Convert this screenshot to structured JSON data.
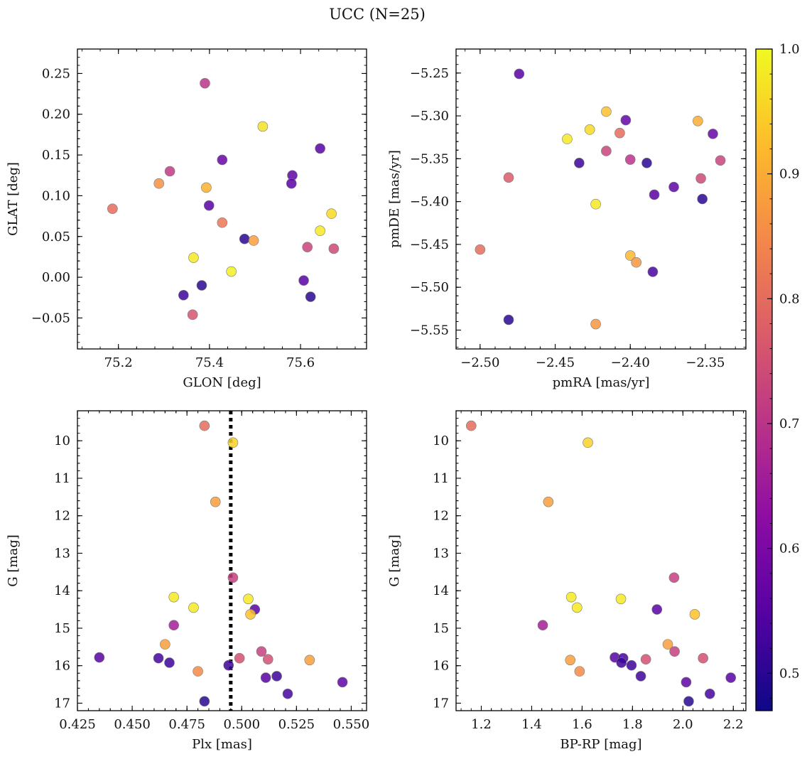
{
  "suptitle": "UCC (N=25)",
  "colorbar": {
    "min": 0.47,
    "max": 1.0,
    "ticks": [
      "0.5",
      "0.6",
      "0.7",
      "0.8",
      "0.9",
      "1.0"
    ],
    "tick_values": [
      0.5,
      0.6,
      0.7,
      0.8,
      0.9,
      1.0
    ],
    "colormap": "plasma"
  },
  "chart_data": [
    {
      "type": "scatter",
      "xlabel": "GLON [deg]",
      "ylabel": "GLAT [deg]",
      "xlim": [
        75.11,
        75.745
      ],
      "ylim": [
        -0.088,
        0.28
      ],
      "y_inverted": false,
      "xticks": [
        75.2,
        75.4,
        75.6
      ],
      "xticklabels": [
        "75.2",
        "75.4",
        "75.6"
      ],
      "yticks": [
        -0.05,
        0.0,
        0.05,
        0.1,
        0.15,
        0.2,
        0.25
      ],
      "yticklabels": [
        "−0.05",
        "0.00",
        "0.05",
        "0.10",
        "0.15",
        "0.20",
        "0.25"
      ],
      "points": [
        {
          "x": 75.39,
          "y": 0.238,
          "c": 0.7
        },
        {
          "x": 75.517,
          "y": 0.185,
          "c": 0.97
        },
        {
          "x": 75.643,
          "y": 0.158,
          "c": 0.55
        },
        {
          "x": 75.428,
          "y": 0.144,
          "c": 0.57
        },
        {
          "x": 75.313,
          "y": 0.13,
          "c": 0.71
        },
        {
          "x": 75.582,
          "y": 0.125,
          "c": 0.56
        },
        {
          "x": 75.289,
          "y": 0.115,
          "c": 0.86
        },
        {
          "x": 75.58,
          "y": 0.115,
          "c": 0.55
        },
        {
          "x": 75.393,
          "y": 0.11,
          "c": 0.91
        },
        {
          "x": 75.399,
          "y": 0.088,
          "c": 0.55
        },
        {
          "x": 75.187,
          "y": 0.084,
          "c": 0.8
        },
        {
          "x": 75.668,
          "y": 0.078,
          "c": 0.96
        },
        {
          "x": 75.428,
          "y": 0.067,
          "c": 0.82
        },
        {
          "x": 75.643,
          "y": 0.057,
          "c": 0.98
        },
        {
          "x": 75.477,
          "y": 0.047,
          "c": 0.5
        },
        {
          "x": 75.497,
          "y": 0.045,
          "c": 0.88
        },
        {
          "x": 75.615,
          "y": 0.037,
          "c": 0.73
        },
        {
          "x": 75.673,
          "y": 0.035,
          "c": 0.74
        },
        {
          "x": 75.365,
          "y": 0.024,
          "c": 0.98
        },
        {
          "x": 75.448,
          "y": 0.007,
          "c": 0.99
        },
        {
          "x": 75.607,
          "y": -0.004,
          "c": 0.55
        },
        {
          "x": 75.383,
          "y": -0.01,
          "c": 0.5
        },
        {
          "x": 75.343,
          "y": -0.022,
          "c": 0.52
        },
        {
          "x": 75.622,
          "y": -0.024,
          "c": 0.5
        },
        {
          "x": 75.363,
          "y": -0.046,
          "c": 0.76
        }
      ]
    },
    {
      "type": "scatter",
      "xlabel": "pmRA [mas/yr]",
      "ylabel": "pmDE [mas/yr]",
      "xlim": [
        -2.516,
        -2.323
      ],
      "ylim": [
        -5.572,
        -5.222
      ],
      "y_inverted": false,
      "xticks": [
        -2.5,
        -2.45,
        -2.4,
        -2.35
      ],
      "xticklabels": [
        "−2.50",
        "−2.45",
        "−2.40",
        "−2.35"
      ],
      "yticks": [
        -5.55,
        -5.5,
        -5.45,
        -5.4,
        -5.35,
        -5.3,
        -5.25
      ],
      "yticklabels": [
        "−5.55",
        "−5.50",
        "−5.45",
        "−5.40",
        "−5.35",
        "−5.30",
        "−5.25"
      ],
      "points": [
        {
          "x": -2.474,
          "y": -5.251,
          "c": 0.55
        },
        {
          "x": -2.416,
          "y": -5.295,
          "c": 0.93
        },
        {
          "x": -2.403,
          "y": -5.305,
          "c": 0.57
        },
        {
          "x": -2.355,
          "y": -5.306,
          "c": 0.9
        },
        {
          "x": -2.427,
          "y": -5.316,
          "c": 0.96
        },
        {
          "x": -2.407,
          "y": -5.32,
          "c": 0.8
        },
        {
          "x": -2.345,
          "y": -5.321,
          "c": 0.57
        },
        {
          "x": -2.442,
          "y": -5.327,
          "c": 0.98
        },
        {
          "x": -2.416,
          "y": -5.341,
          "c": 0.73
        },
        {
          "x": -2.4,
          "y": -5.351,
          "c": 0.7
        },
        {
          "x": -2.34,
          "y": -5.352,
          "c": 0.73
        },
        {
          "x": -2.434,
          "y": -5.355,
          "c": 0.52
        },
        {
          "x": -2.389,
          "y": -5.355,
          "c": 0.5
        },
        {
          "x": -2.481,
          "y": -5.372,
          "c": 0.77
        },
        {
          "x": -2.353,
          "y": -5.373,
          "c": 0.74
        },
        {
          "x": -2.371,
          "y": -5.383,
          "c": 0.56
        },
        {
          "x": -2.384,
          "y": -5.392,
          "c": 0.55
        },
        {
          "x": -2.352,
          "y": -5.397,
          "c": 0.5
        },
        {
          "x": -2.423,
          "y": -5.403,
          "c": 0.98
        },
        {
          "x": -2.5,
          "y": -5.456,
          "c": 0.8
        },
        {
          "x": -2.4,
          "y": -5.463,
          "c": 0.92
        },
        {
          "x": -2.396,
          "y": -5.471,
          "c": 0.87
        },
        {
          "x": -2.385,
          "y": -5.482,
          "c": 0.53
        },
        {
          "x": -2.481,
          "y": -5.538,
          "c": 0.5
        },
        {
          "x": -2.423,
          "y": -5.543,
          "c": 0.87
        }
      ]
    },
    {
      "type": "scatter",
      "xlabel": "Plx [mas]",
      "ylabel": "G [mag]",
      "xlim": [
        0.425,
        0.557
      ],
      "ylim": [
        9.2,
        17.2
      ],
      "y_inverted": true,
      "vline": {
        "x": 0.495,
        "style": "dotted"
      },
      "xticks": [
        0.425,
        0.45,
        0.475,
        0.5,
        0.525,
        0.55
      ],
      "xticklabels": [
        "0.425",
        "0.450",
        "0.475",
        "0.500",
        "0.525",
        "0.550"
      ],
      "yticks": [
        10,
        11,
        12,
        13,
        14,
        15,
        16,
        17
      ],
      "yticklabels": [
        "10",
        "11",
        "12",
        "13",
        "14",
        "15",
        "16",
        "17"
      ],
      "points": [
        {
          "x": 0.483,
          "y": 9.6,
          "c": 0.8
        },
        {
          "x": 0.496,
          "y": 10.05,
          "c": 0.95
        },
        {
          "x": 0.488,
          "y": 11.63,
          "c": 0.88
        },
        {
          "x": 0.496,
          "y": 13.65,
          "c": 0.72
        },
        {
          "x": 0.469,
          "y": 14.17,
          "c": 0.98
        },
        {
          "x": 0.503,
          "y": 14.22,
          "c": 0.98
        },
        {
          "x": 0.478,
          "y": 14.45,
          "c": 0.98
        },
        {
          "x": 0.506,
          "y": 14.5,
          "c": 0.55
        },
        {
          "x": 0.504,
          "y": 14.63,
          "c": 0.93
        },
        {
          "x": 0.469,
          "y": 14.92,
          "c": 0.66
        },
        {
          "x": 0.465,
          "y": 15.43,
          "c": 0.88
        },
        {
          "x": 0.509,
          "y": 15.62,
          "c": 0.72
        },
        {
          "x": 0.435,
          "y": 15.78,
          "c": 0.55
        },
        {
          "x": 0.499,
          "y": 15.8,
          "c": 0.75
        },
        {
          "x": 0.462,
          "y": 15.8,
          "c": 0.53
        },
        {
          "x": 0.512,
          "y": 15.83,
          "c": 0.75
        },
        {
          "x": 0.531,
          "y": 15.85,
          "c": 0.88
        },
        {
          "x": 0.467,
          "y": 15.92,
          "c": 0.52
        },
        {
          "x": 0.494,
          "y": 15.99,
          "c": 0.52
        },
        {
          "x": 0.48,
          "y": 16.15,
          "c": 0.85
        },
        {
          "x": 0.516,
          "y": 16.28,
          "c": 0.52
        },
        {
          "x": 0.511,
          "y": 16.32,
          "c": 0.55
        },
        {
          "x": 0.546,
          "y": 16.44,
          "c": 0.56
        },
        {
          "x": 0.521,
          "y": 16.75,
          "c": 0.53
        },
        {
          "x": 0.483,
          "y": 16.95,
          "c": 0.5
        }
      ]
    },
    {
      "type": "scatter",
      "xlabel": "BP-RP [mag]",
      "ylabel": "G [mag]",
      "xlim": [
        1.1,
        2.25
      ],
      "ylim": [
        9.2,
        17.2
      ],
      "y_inverted": true,
      "xticks": [
        1.2,
        1.4,
        1.6,
        1.8,
        2.0,
        2.2
      ],
      "xticklabels": [
        "1.2",
        "1.4",
        "1.6",
        "1.8",
        "2.0",
        "2.2"
      ],
      "yticks": [
        10,
        11,
        12,
        13,
        14,
        15,
        16,
        17
      ],
      "yticklabels": [
        "10",
        "11",
        "12",
        "13",
        "14",
        "15",
        "16",
        "17"
      ],
      "points": [
        {
          "x": 1.16,
          "y": 9.6,
          "c": 0.8
        },
        {
          "x": 1.623,
          "y": 10.05,
          "c": 0.95
        },
        {
          "x": 1.466,
          "y": 11.63,
          "c": 0.88
        },
        {
          "x": 1.965,
          "y": 13.65,
          "c": 0.72
        },
        {
          "x": 1.557,
          "y": 14.17,
          "c": 0.98
        },
        {
          "x": 1.754,
          "y": 14.22,
          "c": 0.98
        },
        {
          "x": 1.58,
          "y": 14.45,
          "c": 0.98
        },
        {
          "x": 1.897,
          "y": 14.5,
          "c": 0.55
        },
        {
          "x": 2.047,
          "y": 14.63,
          "c": 0.93
        },
        {
          "x": 1.444,
          "y": 14.92,
          "c": 0.66
        },
        {
          "x": 1.94,
          "y": 15.43,
          "c": 0.88
        },
        {
          "x": 1.967,
          "y": 15.62,
          "c": 0.72
        },
        {
          "x": 1.73,
          "y": 15.78,
          "c": 0.55
        },
        {
          "x": 2.08,
          "y": 15.8,
          "c": 0.75
        },
        {
          "x": 1.763,
          "y": 15.8,
          "c": 0.53
        },
        {
          "x": 1.853,
          "y": 15.83,
          "c": 0.75
        },
        {
          "x": 1.553,
          "y": 15.85,
          "c": 0.88
        },
        {
          "x": 1.756,
          "y": 15.92,
          "c": 0.52
        },
        {
          "x": 1.796,
          "y": 15.99,
          "c": 0.52
        },
        {
          "x": 1.59,
          "y": 16.15,
          "c": 0.85
        },
        {
          "x": 1.833,
          "y": 16.28,
          "c": 0.52
        },
        {
          "x": 2.19,
          "y": 16.32,
          "c": 0.55
        },
        {
          "x": 2.013,
          "y": 16.44,
          "c": 0.56
        },
        {
          "x": 2.107,
          "y": 16.75,
          "c": 0.53
        },
        {
          "x": 2.023,
          "y": 16.95,
          "c": 0.5
        }
      ]
    }
  ]
}
